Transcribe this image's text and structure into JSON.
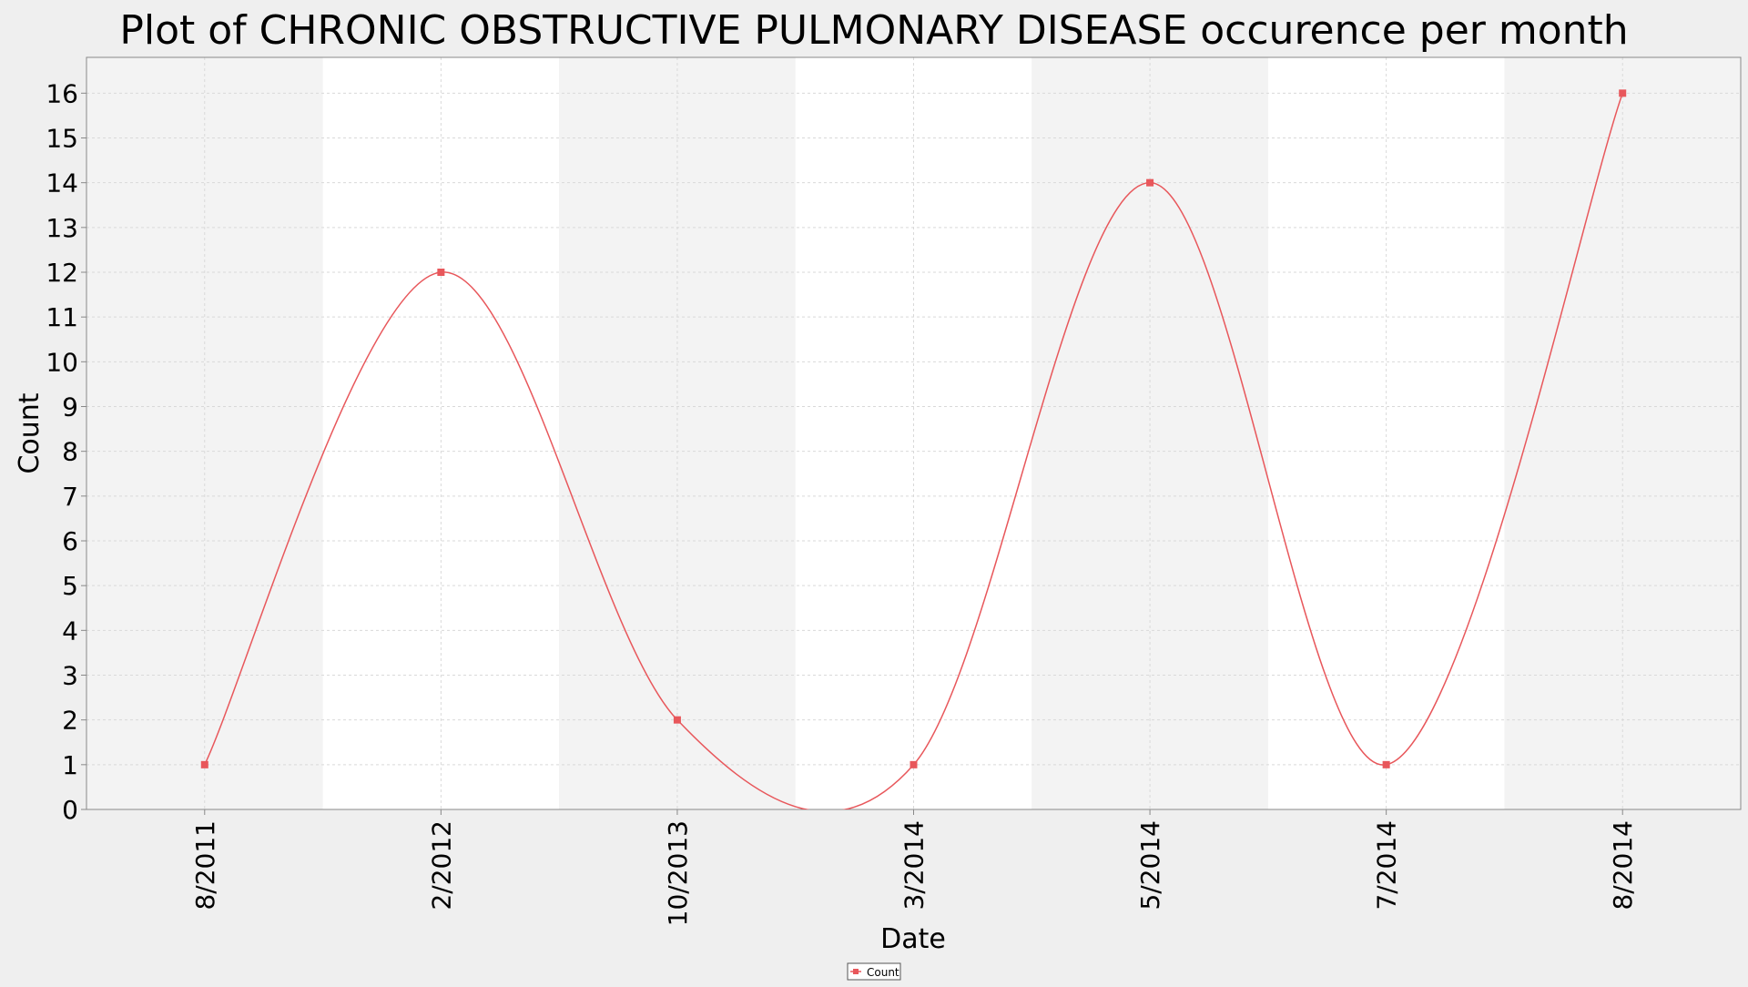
{
  "chart_data": {
    "type": "line",
    "title": "Plot of CHRONIC OBSTRUCTIVE PULMONARY DISEASE occurence per month",
    "xlabel": "Date",
    "ylabel": "Count",
    "categories": [
      "8/2011",
      "2/2012",
      "10/2013",
      "3/2014",
      "5/2014",
      "7/2014",
      "8/2014"
    ],
    "series": [
      {
        "name": "Count",
        "values": [
          1,
          12,
          2,
          1,
          14,
          1,
          16
        ],
        "color": "#e8575b"
      }
    ],
    "ylim": [
      0,
      16.8
    ],
    "yticks": [
      "0",
      "1",
      "2",
      "3",
      "4",
      "5",
      "6",
      "7",
      "8",
      "9",
      "10",
      "11",
      "12",
      "13",
      "14",
      "15",
      "16"
    ],
    "grid": true,
    "legend": "bottom-center",
    "colors": {
      "background": "#efefef",
      "plot_band_light": "#ffffff",
      "plot_band_dark": "#f3f3f3",
      "gridline": "#d9d9d9",
      "line": "#e8575b"
    }
  }
}
